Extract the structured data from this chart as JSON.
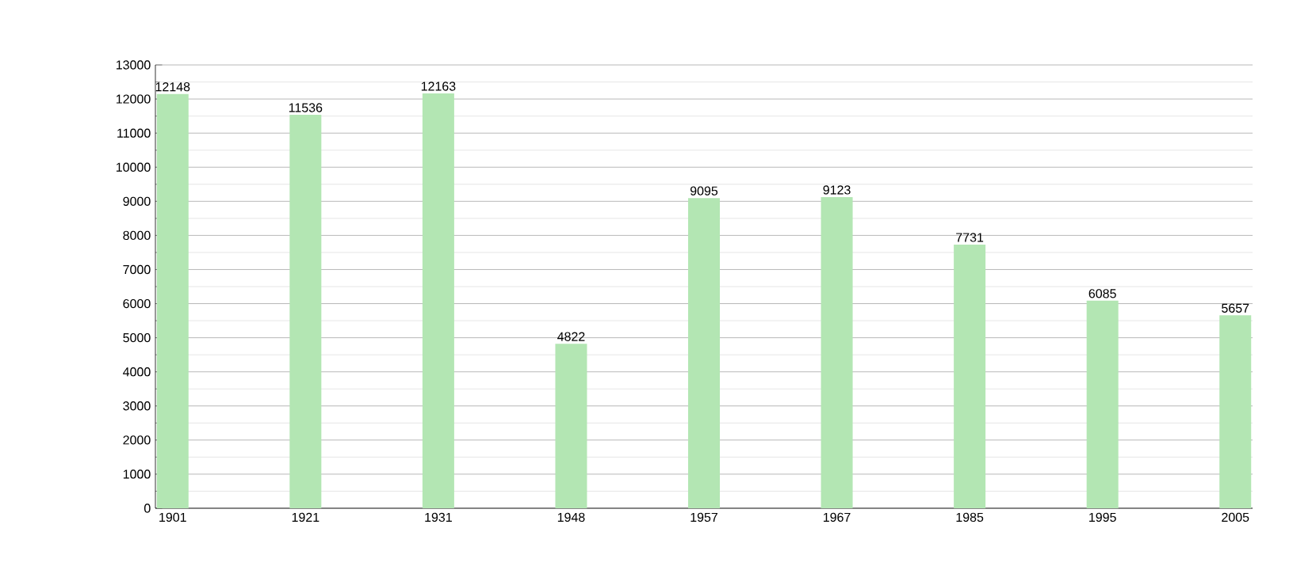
{
  "chart_data": {
    "type": "bar",
    "categories": [
      "1901",
      "1921",
      "1931",
      "1948",
      "1957",
      "1967",
      "1985",
      "1995",
      "2005"
    ],
    "values": [
      12148,
      11536,
      12163,
      4822,
      9095,
      9123,
      7731,
      6085,
      5657
    ],
    "color": "#b3e6b3",
    "ylim": [
      0,
      13000
    ],
    "yticks": [
      0,
      1000,
      2000,
      3000,
      4000,
      5000,
      6000,
      7000,
      8000,
      9000,
      10000,
      11000,
      12000,
      13000
    ],
    "grid": "y",
    "data_labels": true
  }
}
